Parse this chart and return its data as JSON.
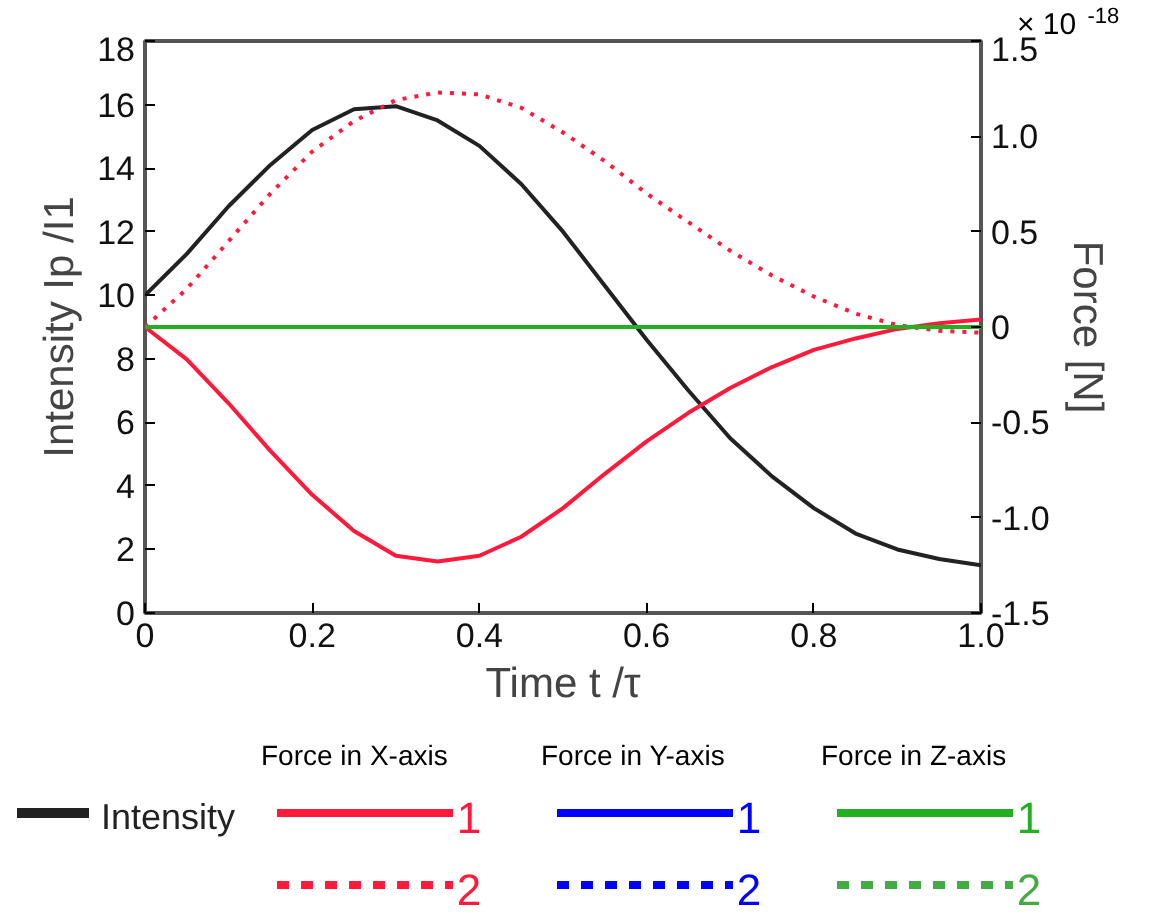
{
  "chart_data": {
    "type": "line",
    "xlabel": "Time t /τ",
    "ylabel": "Intensity Ip /I1",
    "y2label": "Force [N]",
    "x": [
      0,
      0.05,
      0.1,
      0.15,
      0.2,
      0.25,
      0.3,
      0.35,
      0.4,
      0.45,
      0.5,
      0.55,
      0.6,
      0.65,
      0.7,
      0.75,
      0.8,
      0.85,
      0.9,
      0.95,
      1.0
    ],
    "xlim": [
      0,
      1
    ],
    "xticks": [
      0,
      0.2,
      0.4,
      0.6,
      0.8,
      {
        "value": 1,
        "label": "1.0"
      }
    ],
    "ylim": [
      0,
      18
    ],
    "yticks": [
      0,
      2,
      4,
      6,
      8,
      10,
      12,
      14,
      16,
      18
    ],
    "y2lim": [
      -1.5,
      1.5
    ],
    "y2ticks": [
      {
        "value": -1.5,
        "label": "-1.5"
      },
      {
        "value": -1,
        "label": "-1.0"
      },
      -0.5,
      0,
      0.5,
      {
        "value": 1,
        "label": "1.0"
      },
      1.5
    ],
    "annotations": [
      "× 10$^{-18}$",
      "Force in X-axis",
      "Force in Y-axis",
      "Force in Z-axis"
    ],
    "grid": false,
    "legend": "bottom",
    "marker": "none",
    "series": [
      {
        "name": "Intensity",
        "color": "#222222",
        "line_style": "solid",
        "values": [
          10,
          11.3,
          12.8,
          14.1,
          15.2,
          15.85,
          15.95,
          15.5,
          14.7,
          13.5,
          12.0,
          10.3,
          8.6,
          7.0,
          5.5,
          4.3,
          3.3,
          2.5,
          2.0,
          1.7,
          1.5
        ]
      },
      {
        "name": "1",
        "color": "#ff1a3c",
        "axis": "y2",
        "line_style": "solid",
        "values": [
          0,
          -0.17,
          -0.4,
          -0.65,
          -0.88,
          -1.07,
          -1.2,
          -1.23,
          -1.2,
          -1.1,
          -0.95,
          -0.77,
          -0.6,
          -0.45,
          -0.32,
          -0.21,
          -0.12,
          -0.06,
          -0.01,
          0.02,
          0.04
        ]
      },
      {
        "name": "2",
        "color": "#ff1a3c",
        "axis": "y2",
        "line_style": "dotted",
        "values": [
          0,
          0.2,
          0.45,
          0.7,
          0.92,
          1.08,
          1.19,
          1.23,
          1.22,
          1.15,
          1.02,
          0.87,
          0.7,
          0.55,
          0.4,
          0.27,
          0.16,
          0.07,
          0.01,
          -0.02,
          -0.03
        ]
      },
      {
        "name": "1",
        "color": "#0000ff",
        "axis": "y2",
        "line_style": "solid",
        "values": [
          null,
          null,
          null,
          null,
          null,
          null,
          null,
          null,
          null,
          null,
          null,
          null,
          null,
          null,
          null,
          null,
          null,
          null,
          null,
          null,
          null
        ]
      },
      {
        "name": "2",
        "color": "#0000ff",
        "axis": "y2",
        "line_style": "dashed",
        "values": [
          null,
          null,
          null,
          null,
          null,
          null,
          null,
          null,
          null,
          null,
          null,
          null,
          null,
          null,
          null,
          null,
          null,
          null,
          null,
          null,
          null
        ]
      },
      {
        "name": "1",
        "color": "#22b022",
        "axis": "y2",
        "line_style": "solid",
        "values": [
          0,
          0,
          0,
          0,
          0,
          0,
          0,
          0,
          0,
          0,
          0,
          0,
          0,
          0,
          0,
          0,
          0,
          0,
          0,
          0,
          0
        ]
      },
      {
        "name": "2",
        "color": "#44aa44",
        "axis": "y2",
        "line_style": "dashed",
        "values": [
          null,
          null,
          null,
          null,
          null,
          null,
          null,
          null,
          null,
          null,
          null,
          null,
          null,
          null,
          null,
          null,
          null,
          null,
          null,
          null,
          null
        ]
      }
    ]
  }
}
